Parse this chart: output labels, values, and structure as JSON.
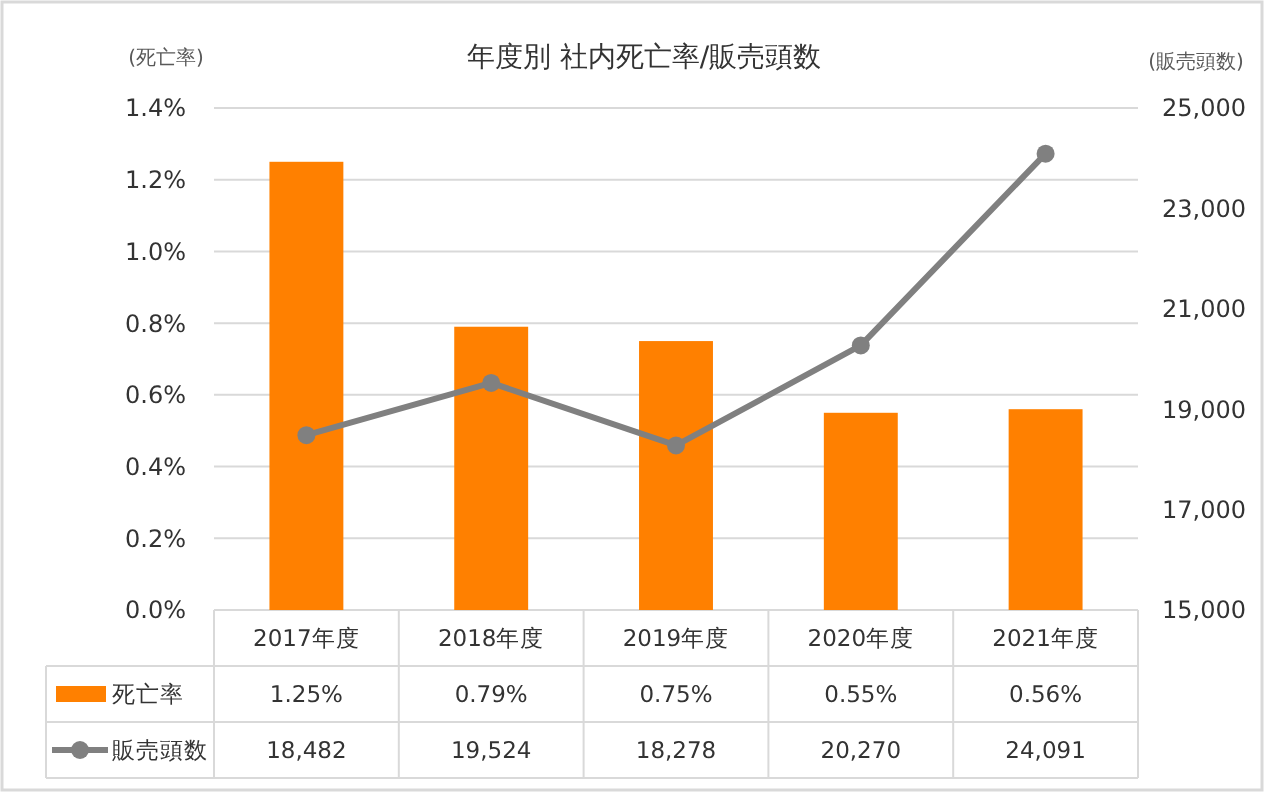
{
  "chart_data": {
    "type": "bar",
    "title": "年度別 社内死亡率/販売頭数",
    "ylabel": "(死亡率)",
    "y2label": "(販売頭数)",
    "categories": [
      "2017年度",
      "2018年度",
      "2019年度",
      "2020年度",
      "2021年度"
    ],
    "series": [
      {
        "name": "死亡率",
        "color": "#ff8000",
        "values": [
          1.25,
          0.79,
          0.75,
          0.55,
          0.56
        ],
        "value_labels": [
          "1.25%",
          "0.79%",
          "0.75%",
          "0.55%",
          "0.56%"
        ]
      },
      {
        "name": "販売頭数",
        "type": "line",
        "axis": "y2",
        "color": "#808080",
        "marker": "circle",
        "values": [
          18482,
          19524,
          18278,
          20270,
          24091
        ],
        "value_labels": [
          "18,482",
          "19,524",
          "18,278",
          "20,270",
          "24,091"
        ]
      }
    ],
    "ylim": [
      0,
      1.4
    ],
    "yticks": [
      {
        "value": 0,
        "label": "0.0%"
      },
      {
        "value": 0.2,
        "label": "0.2%"
      },
      {
        "value": 0.4,
        "label": "0.4%"
      },
      {
        "value": 0.6,
        "label": "0.6%"
      },
      {
        "value": 0.8,
        "label": "0.8%"
      },
      {
        "value": 1.0,
        "label": "1.0%"
      },
      {
        "value": 1.2,
        "label": "1.2%"
      },
      {
        "value": 1.4,
        "label": "1.4%"
      }
    ],
    "y2lim": [
      15000,
      25000
    ],
    "y2ticks": [
      {
        "value": 15000,
        "label": "15,000"
      },
      {
        "value": 17000,
        "label": "17,000"
      },
      {
        "value": 19000,
        "label": "19,000"
      },
      {
        "value": 21000,
        "label": "21,000"
      },
      {
        "value": 23000,
        "label": "23,000"
      },
      {
        "value": 25000,
        "label": "25,000"
      }
    ],
    "grid": "y",
    "legend": "bottom left"
  }
}
